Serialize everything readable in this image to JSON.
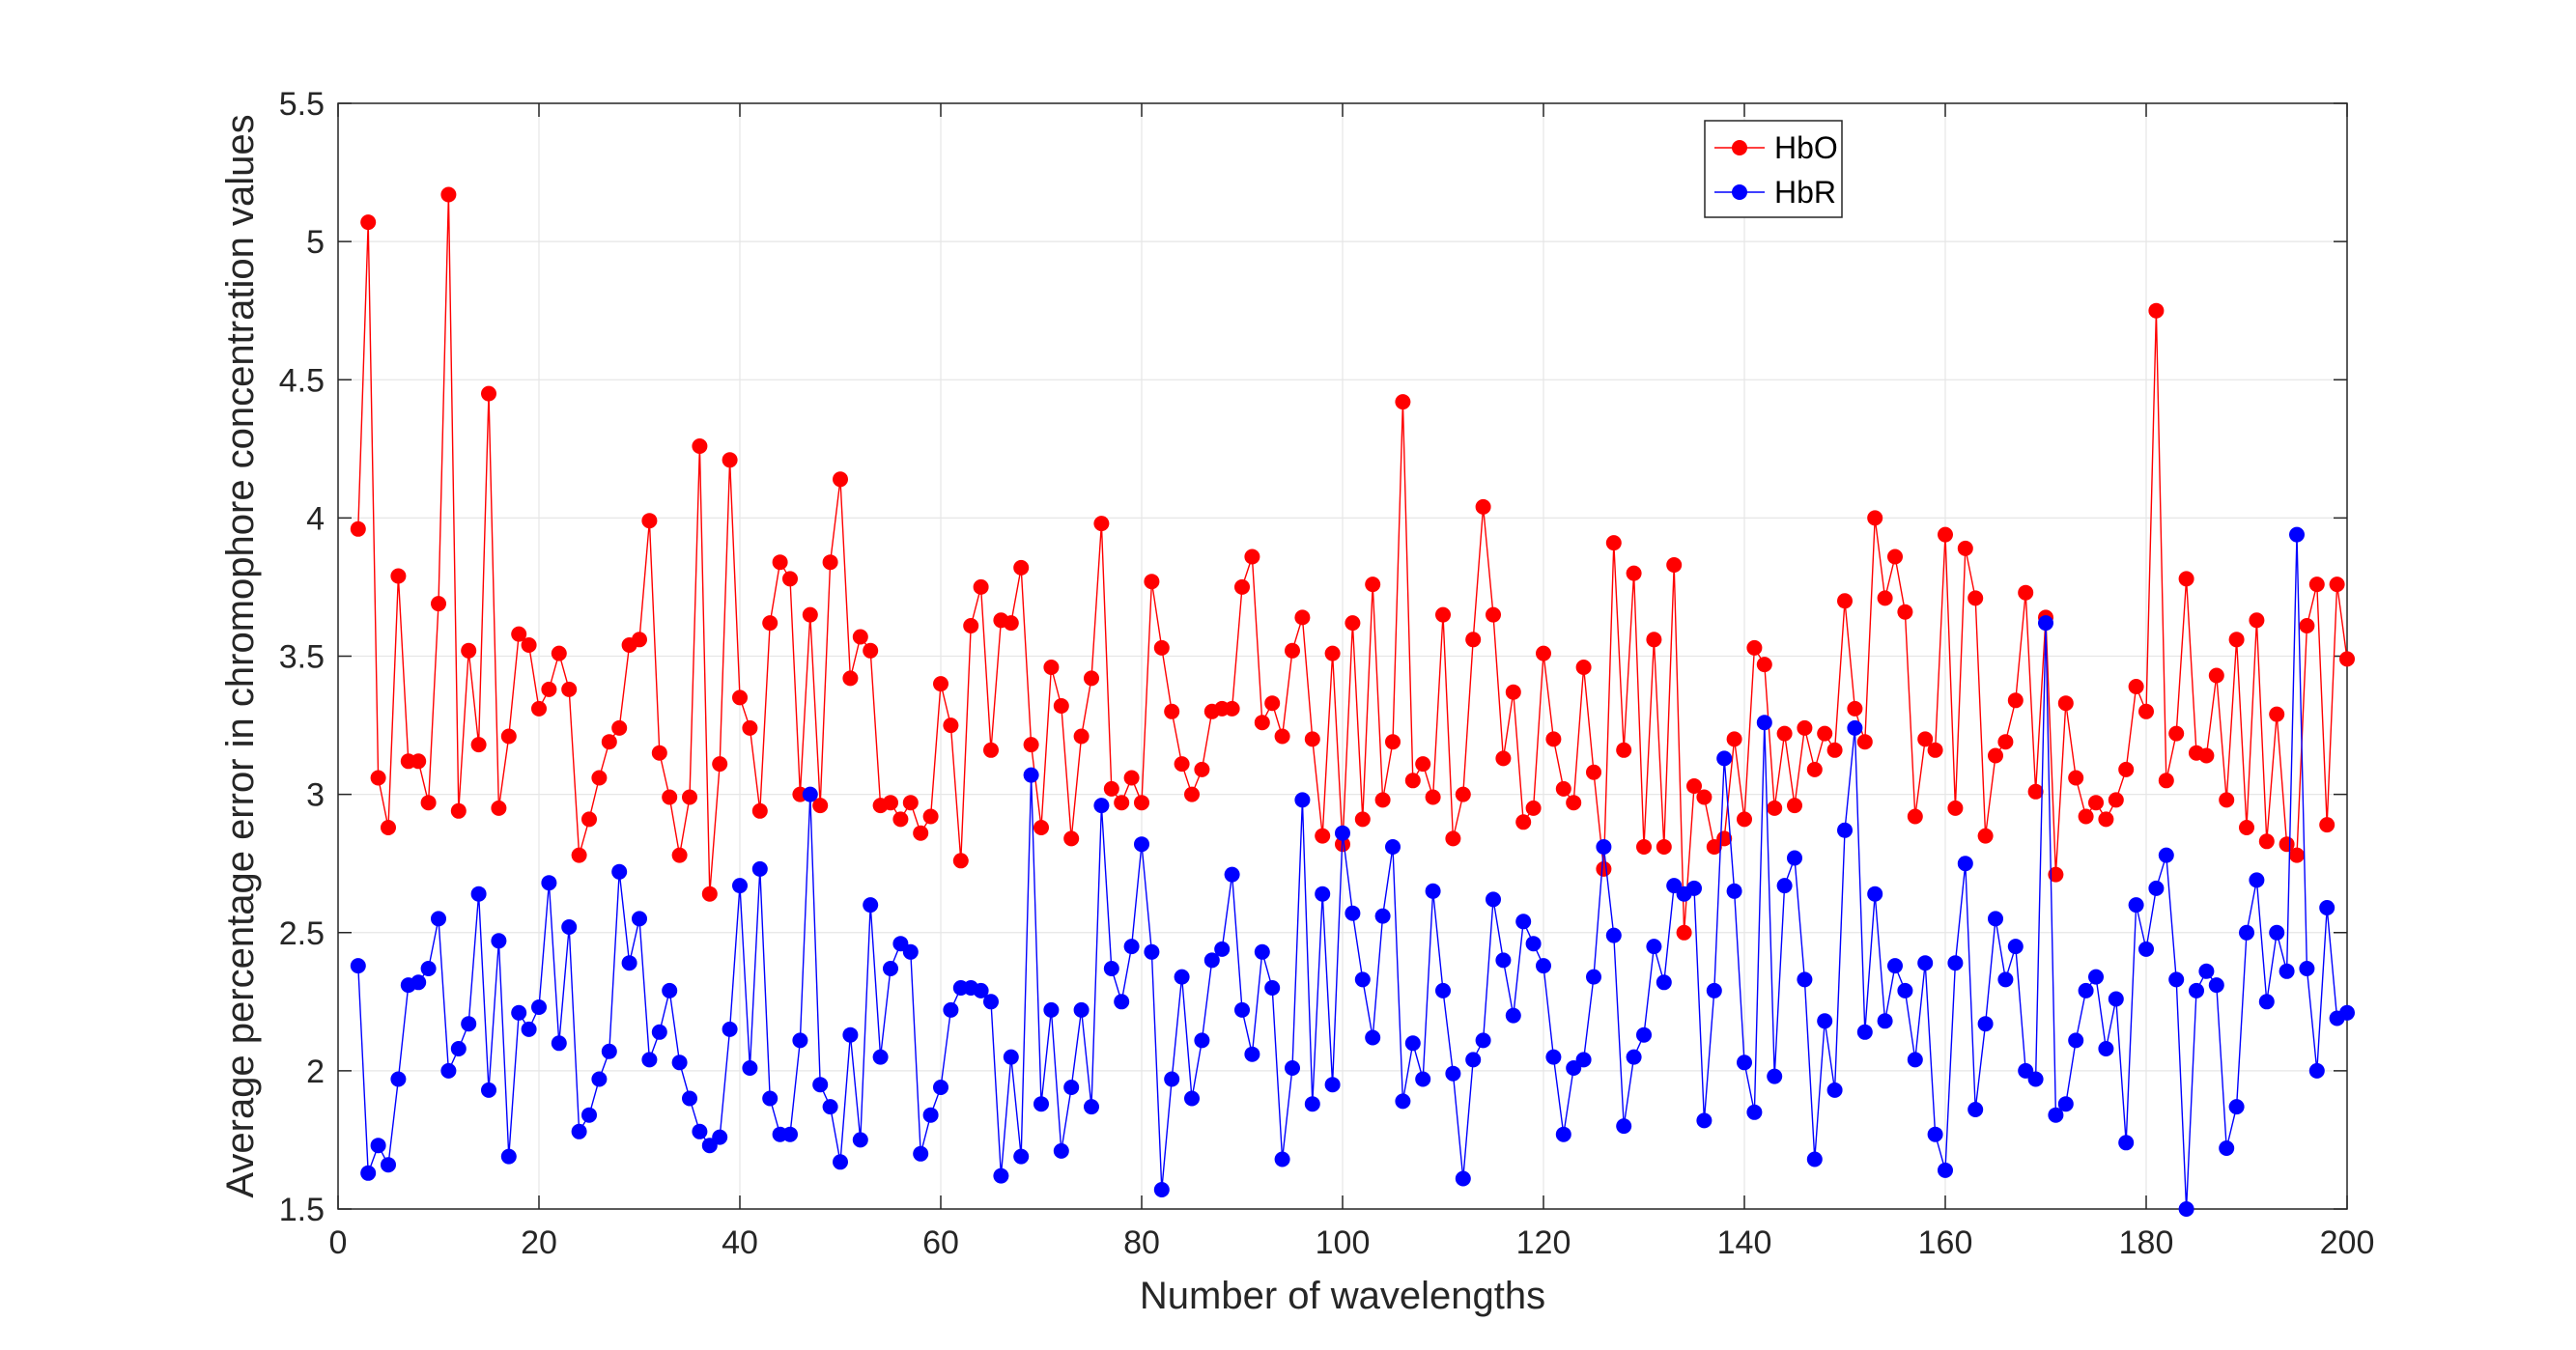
{
  "chart_data": {
    "type": "line",
    "xlabel": "Number of wavelengths",
    "ylabel": "Average percentage error in chromophore concentration values",
    "xlim": [
      0,
      200
    ],
    "ylim": [
      1.5,
      5.5
    ],
    "x_ticks": [
      0,
      20,
      40,
      60,
      80,
      100,
      120,
      140,
      160,
      180,
      200
    ],
    "y_ticks": [
      1.5,
      2,
      2.5,
      3,
      3.5,
      4,
      4.5,
      5,
      5.5
    ],
    "grid": true,
    "legend_position": "top-right",
    "x": [
      2,
      3,
      4,
      5,
      6,
      7,
      8,
      9,
      10,
      11,
      12,
      13,
      14,
      15,
      16,
      17,
      18,
      19,
      20,
      21,
      22,
      23,
      24,
      25,
      26,
      27,
      28,
      29,
      30,
      31,
      32,
      33,
      34,
      35,
      36,
      37,
      38,
      39,
      40,
      41,
      42,
      43,
      44,
      45,
      46,
      47,
      48,
      49,
      50,
      51,
      52,
      53,
      54,
      55,
      56,
      57,
      58,
      59,
      60,
      61,
      62,
      63,
      64,
      65,
      66,
      67,
      68,
      69,
      70,
      71,
      72,
      73,
      74,
      75,
      76,
      77,
      78,
      79,
      80,
      81,
      82,
      83,
      84,
      85,
      86,
      87,
      88,
      89,
      90,
      91,
      92,
      93,
      94,
      95,
      96,
      97,
      98,
      99,
      100,
      101,
      102,
      103,
      104,
      105,
      106,
      107,
      108,
      109,
      110,
      111,
      112,
      113,
      114,
      115,
      116,
      117,
      118,
      119,
      120,
      121,
      122,
      123,
      124,
      125,
      126,
      127,
      128,
      129,
      130,
      131,
      132,
      133,
      134,
      135,
      136,
      137,
      138,
      139,
      140,
      141,
      142,
      143,
      144,
      145,
      146,
      147,
      148,
      149,
      150,
      151,
      152,
      153,
      154,
      155,
      156,
      157,
      158,
      159,
      160,
      161,
      162,
      163,
      164,
      165,
      166,
      167,
      168,
      169,
      170,
      171,
      172,
      173,
      174,
      175,
      176,
      177,
      178,
      179,
      180,
      181,
      182,
      183,
      184,
      185,
      186,
      187,
      188,
      189,
      190,
      191,
      192,
      193,
      194,
      195,
      196,
      197,
      198,
      199,
      200
    ],
    "series": [
      {
        "name": "HbO",
        "color": "#ff0000",
        "values": [
          3.96,
          5.07,
          3.06,
          2.88,
          3.79,
          3.12,
          3.12,
          2.97,
          3.69,
          5.17,
          2.94,
          3.52,
          3.18,
          4.45,
          2.95,
          3.21,
          3.58,
          3.54,
          3.31,
          3.38,
          3.51,
          3.38,
          2.78,
          2.91,
          3.06,
          3.19,
          3.24,
          3.54,
          3.56,
          3.99,
          3.15,
          2.99,
          2.78,
          2.99,
          4.26,
          2.64,
          3.11,
          4.21,
          3.35,
          3.24,
          2.94,
          3.62,
          3.84,
          3.78,
          3.0,
          3.65,
          2.96,
          3.84,
          4.14,
          3.42,
          3.57,
          3.52,
          2.96,
          2.97,
          2.91,
          2.97,
          2.86,
          2.92,
          3.4,
          3.25,
          2.76,
          3.61,
          3.75,
          3.16,
          3.63,
          3.62,
          3.82,
          3.18,
          2.88,
          3.46,
          3.32,
          2.84,
          3.21,
          3.42,
          3.98,
          3.02,
          2.97,
          3.06,
          2.97,
          3.77,
          3.53,
          3.3,
          3.11,
          3.0,
          3.09,
          3.3,
          3.31,
          3.31,
          3.75,
          3.86,
          3.26,
          3.33,
          3.21,
          3.52,
          3.64,
          3.2,
          2.85,
          3.51,
          2.82,
          3.62,
          2.91,
          3.76,
          2.98,
          3.19,
          4.42,
          3.05,
          3.11,
          2.99,
          3.65,
          2.84,
          3.0,
          3.56,
          4.04,
          3.65,
          3.13,
          3.37,
          2.9,
          2.95,
          3.51,
          3.2,
          3.02,
          2.97,
          3.46,
          3.08,
          2.73,
          3.91,
          3.16,
          3.8,
          2.81,
          3.56,
          2.81,
          3.83,
          2.5,
          3.03,
          2.99,
          2.81,
          2.84,
          3.2,
          2.91,
          3.53,
          3.47,
          2.95,
          3.22,
          2.96,
          3.24,
          3.09,
          3.22,
          3.16,
          3.7,
          3.31,
          3.19,
          4.0,
          3.71,
          3.86,
          3.66,
          2.92,
          3.2,
          3.16,
          3.94,
          2.95,
          3.89,
          3.71,
          2.85,
          3.14,
          3.19,
          3.34,
          3.73,
          3.01,
          3.64,
          2.71,
          3.33,
          3.06,
          2.92,
          2.97,
          2.91,
          2.98,
          3.09,
          3.39,
          3.3,
          4.75,
          3.05,
          3.22,
          3.78,
          3.15,
          3.14,
          3.43,
          2.98,
          3.56,
          2.88,
          3.63,
          2.83,
          3.29,
          2.82,
          2.78,
          3.61,
          3.76,
          2.89,
          3.76,
          3.49
        ]
      },
      {
        "name": "HbR",
        "color": "#0000ff",
        "values": [
          2.38,
          1.63,
          1.73,
          1.66,
          1.97,
          2.31,
          2.32,
          2.37,
          2.55,
          2.0,
          2.08,
          2.17,
          2.64,
          1.93,
          2.47,
          1.69,
          2.21,
          2.15,
          2.23,
          2.68,
          2.1,
          2.52,
          1.78,
          1.84,
          1.97,
          2.07,
          2.72,
          2.39,
          2.55,
          2.04,
          2.14,
          2.29,
          2.03,
          1.9,
          1.78,
          1.73,
          1.76,
          2.15,
          2.67,
          2.01,
          2.73,
          1.9,
          1.77,
          1.77,
          2.11,
          3.0,
          1.95,
          1.87,
          1.67,
          2.13,
          1.75,
          2.6,
          2.05,
          2.37,
          2.46,
          2.43,
          1.7,
          1.84,
          1.94,
          2.22,
          2.3,
          2.3,
          2.29,
          2.25,
          1.62,
          2.05,
          1.69,
          3.07,
          1.88,
          2.22,
          1.71,
          1.94,
          2.22,
          1.87,
          2.96,
          2.37,
          2.25,
          2.45,
          2.82,
          2.43,
          1.57,
          1.97,
          2.34,
          1.9,
          2.11,
          2.4,
          2.44,
          2.71,
          2.22,
          2.06,
          2.43,
          2.3,
          1.68,
          2.01,
          2.98,
          1.88,
          2.64,
          1.95,
          2.86,
          2.57,
          2.33,
          2.12,
          2.56,
          2.81,
          1.89,
          2.1,
          1.97,
          2.65,
          2.29,
          1.99,
          1.61,
          2.04,
          2.11,
          2.62,
          2.4,
          2.2,
          2.54,
          2.46,
          2.38,
          2.05,
          1.77,
          2.01,
          2.04,
          2.34,
          2.81,
          2.49,
          1.8,
          2.05,
          2.13,
          2.45,
          2.32,
          2.67,
          2.64,
          2.66,
          1.82,
          2.29,
          3.13,
          2.65,
          2.03,
          1.85,
          3.26,
          1.98,
          2.67,
          2.77,
          2.33,
          1.68,
          2.18,
          1.93,
          2.87,
          3.24,
          2.14,
          2.64,
          2.18,
          2.38,
          2.29,
          2.04,
          2.39,
          1.77,
          1.64,
          2.39,
          2.75,
          1.86,
          2.17,
          2.55,
          2.33,
          2.45,
          2.0,
          1.97,
          3.62,
          1.84,
          1.88,
          2.11,
          2.29,
          2.34,
          2.08,
          2.26,
          1.74,
          2.6,
          2.44,
          2.66,
          2.78,
          2.33,
          1.5,
          2.29,
          2.36,
          2.31,
          1.72,
          1.87,
          2.5,
          2.69,
          2.25,
          2.5,
          2.36,
          3.94,
          2.37,
          2.0,
          2.59,
          2.19,
          2.21
        ]
      }
    ]
  }
}
